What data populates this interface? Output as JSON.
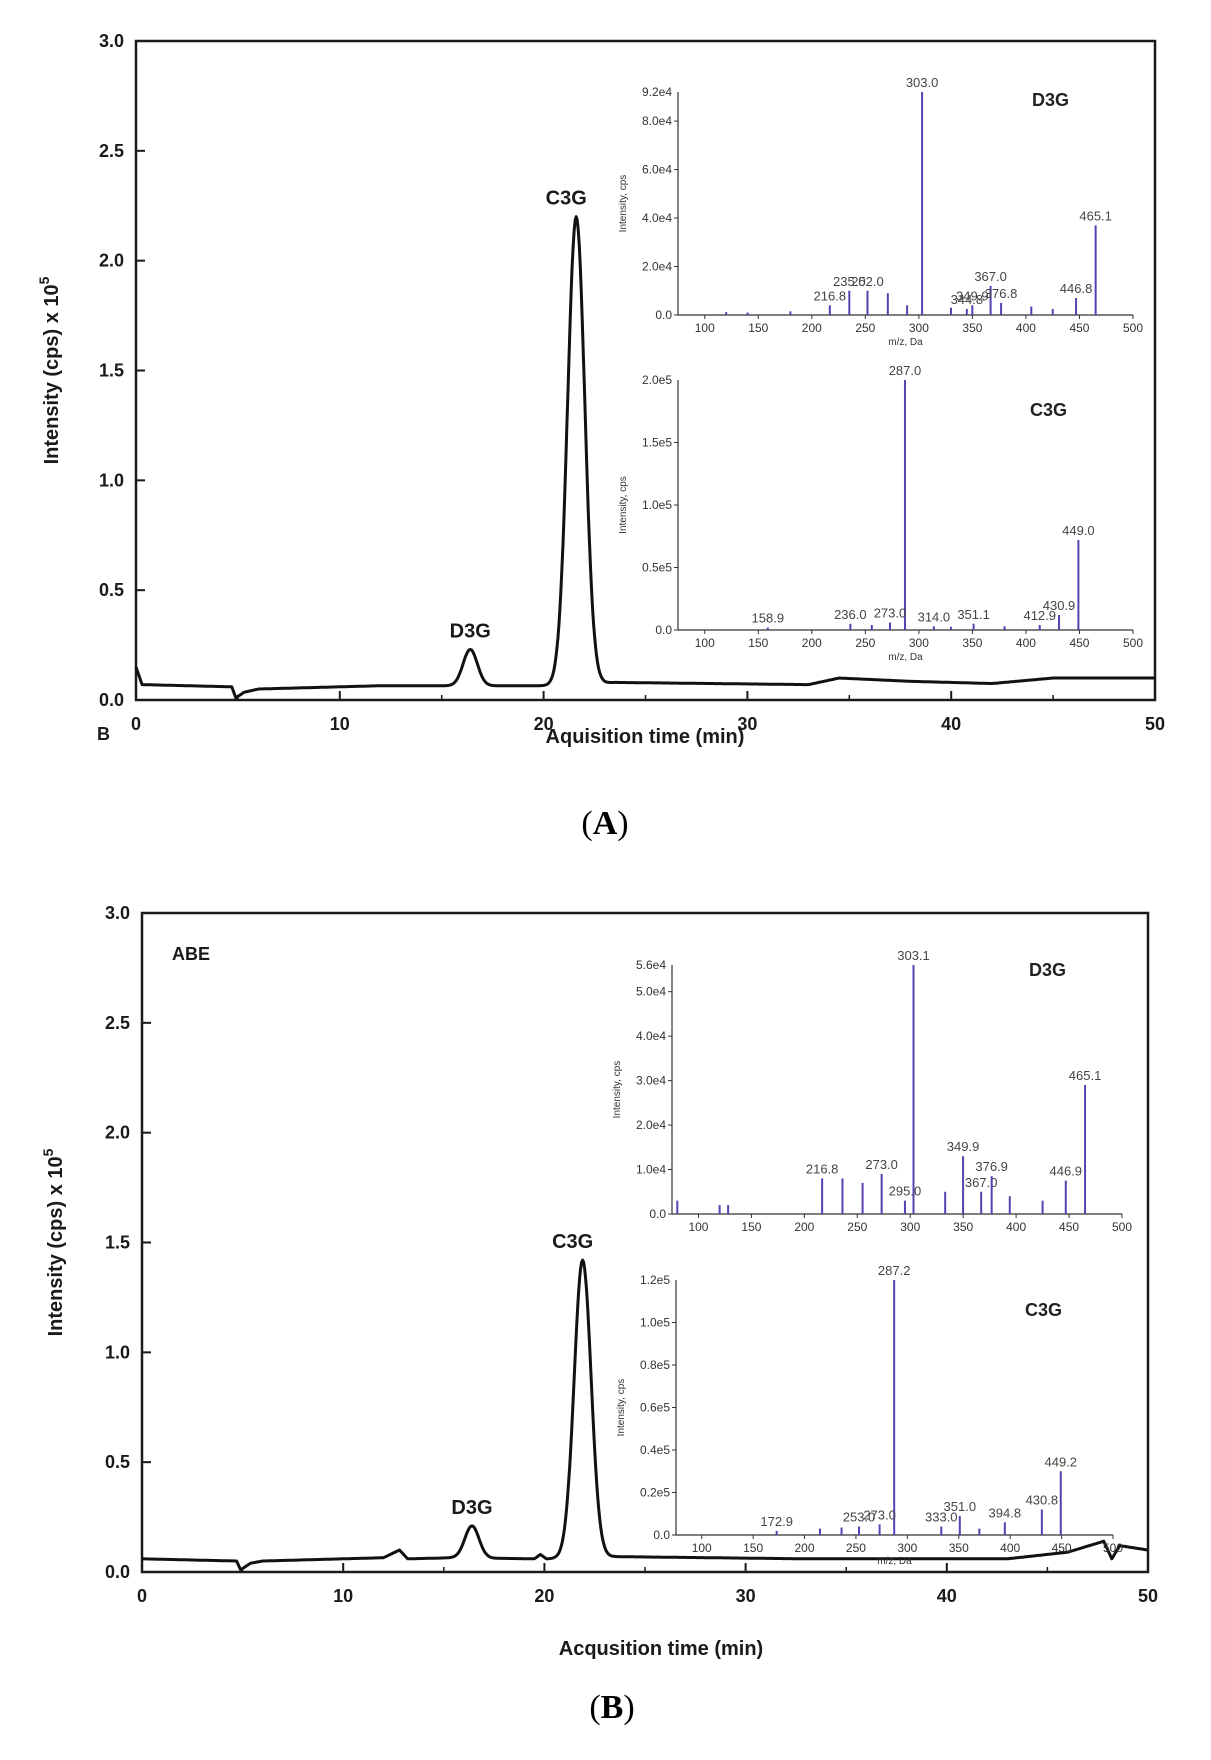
{
  "chart_data": [
    {
      "type": "line",
      "panel": "A",
      "caption": "A",
      "corner_label": "B",
      "inner_label": "",
      "xlabel": "Aquisition time (min)",
      "ylabel": "Intensity (cps) x 10",
      "ylabel_sup": "5",
      "xlim": [
        0,
        50
      ],
      "ylim": [
        0,
        3.0
      ],
      "xticks": [
        "0",
        "10",
        "20",
        "30",
        "40",
        "50"
      ],
      "yticks": [
        "0.0",
        "0.5",
        "1.0",
        "1.5",
        "2.0",
        "2.5",
        "3.0"
      ],
      "peaks": [
        {
          "name": "D3G",
          "x": 16.4,
          "y": 0.23
        },
        {
          "name": "C3G",
          "x": 21.6,
          "y": 2.2
        }
      ],
      "baseline": [
        [
          0,
          0.15
        ],
        [
          0.3,
          0.07
        ],
        [
          4.7,
          0.06
        ],
        [
          4.9,
          0.01
        ],
        [
          5.3,
          0.035
        ],
        [
          6,
          0.05
        ],
        [
          12,
          0.065
        ],
        [
          15.5,
          0.065
        ],
        [
          20.5,
          0.065
        ],
        [
          23.5,
          0.08
        ],
        [
          33,
          0.07
        ],
        [
          34.5,
          0.1
        ],
        [
          38,
          0.085
        ],
        [
          42,
          0.075
        ],
        [
          45,
          0.1
        ],
        [
          50,
          0.1
        ]
      ],
      "insets": [
        {
          "title": "D3G",
          "ymax_label": "9.2e4",
          "ylabel": "Intensity, cps",
          "xlabel": "m/z, Da",
          "yticks": [
            "0.0",
            "2.0e4",
            "4.0e4",
            "6.0e4",
            "8.0e4"
          ],
          "ytick_values": [
            0,
            20000,
            40000,
            60000,
            80000
          ],
          "ymax": 92000,
          "xticks": [
            "100",
            "150",
            "200",
            "250",
            "300",
            "350",
            "400",
            "450",
            "500"
          ],
          "xlim": [
            75,
            500
          ],
          "peaks": [
            {
              "mz": 303.0,
              "i": 92000,
              "label": "303.0"
            },
            {
              "mz": 465.1,
              "i": 37000,
              "label": "465.1"
            },
            {
              "mz": 367.0,
              "i": 12000,
              "label": "367.0"
            },
            {
              "mz": 235.0,
              "i": 10000,
              "label": "235.0"
            },
            {
              "mz": 252.0,
              "i": 10000,
              "label": "252.0"
            },
            {
              "mz": 216.8,
              "i": 4000,
              "label": "216.8"
            },
            {
              "mz": 349.9,
              "i": 4000,
              "label": "349.9"
            },
            {
              "mz": 344.8,
              "i": 2500,
              "label": "344.8"
            },
            {
              "mz": 376.8,
              "i": 5000,
              "label": "376.8"
            },
            {
              "mz": 446.8,
              "i": 7000,
              "label": "446.8"
            },
            {
              "mz": 271,
              "i": 9000,
              "label": ""
            },
            {
              "mz": 289,
              "i": 4000,
              "label": ""
            },
            {
              "mz": 330,
              "i": 3000,
              "label": ""
            },
            {
              "mz": 405,
              "i": 3500,
              "label": ""
            },
            {
              "mz": 120,
              "i": 1200,
              "label": ""
            },
            {
              "mz": 140,
              "i": 1000,
              "label": ""
            },
            {
              "mz": 180,
              "i": 1500,
              "label": ""
            },
            {
              "mz": 425,
              "i": 2500,
              "label": ""
            }
          ]
        },
        {
          "title": "C3G",
          "ymax_label": "2.0e5",
          "ylabel": "Intensity, cps",
          "xlabel": "m/z, Da",
          "yticks": [
            "0.0",
            "0.5e5",
            "1.0e5",
            "1.5e5"
          ],
          "ytick_values": [
            0,
            50000,
            100000,
            150000
          ],
          "ymax": 200000,
          "xticks": [
            "100",
            "150",
            "200",
            "250",
            "300",
            "350",
            "400",
            "450",
            "500"
          ],
          "xlim": [
            75,
            500
          ],
          "peaks": [
            {
              "mz": 287.0,
              "i": 200000,
              "label": "287.0"
            },
            {
              "mz": 449.0,
              "i": 72000,
              "label": "449.0"
            },
            {
              "mz": 430.9,
              "i": 12000,
              "label": "430.9"
            },
            {
              "mz": 158.9,
              "i": 2000,
              "label": "158.9"
            },
            {
              "mz": 236.0,
              "i": 5000,
              "label": "236.0"
            },
            {
              "mz": 273.0,
              "i": 6000,
              "label": "273.0"
            },
            {
              "mz": 314.0,
              "i": 3000,
              "label": "314.0"
            },
            {
              "mz": 351.1,
              "i": 5000,
              "label": "351.1"
            },
            {
              "mz": 412.9,
              "i": 4000,
              "label": "412.9"
            },
            {
              "mz": 256,
              "i": 4000,
              "label": ""
            },
            {
              "mz": 330,
              "i": 2500,
              "label": ""
            },
            {
              "mz": 380,
              "i": 3000,
              "label": ""
            }
          ]
        }
      ]
    },
    {
      "type": "line",
      "panel": "B",
      "caption": "B",
      "corner_label": "",
      "inner_label": "ABE",
      "xlabel": "Acqusition time (min)",
      "ylabel": "Intensity (cps) x 10",
      "ylabel_sup": "5",
      "xlim": [
        0,
        50
      ],
      "ylim": [
        0,
        3.0
      ],
      "xticks": [
        "0",
        "10",
        "20",
        "30",
        "40",
        "50"
      ],
      "yticks": [
        "0.0",
        "0.5",
        "1.0",
        "1.5",
        "2.0",
        "2.5",
        "3.0"
      ],
      "peaks": [
        {
          "name": "D3G",
          "x": 16.4,
          "y": 0.21
        },
        {
          "name": "C3G",
          "x": 21.9,
          "y": 1.42
        }
      ],
      "baseline": [
        [
          0,
          0.06
        ],
        [
          4.7,
          0.05
        ],
        [
          4.9,
          0.01
        ],
        [
          5.4,
          0.04
        ],
        [
          6,
          0.05
        ],
        [
          12,
          0.065
        ],
        [
          12.8,
          0.1
        ],
        [
          13.2,
          0.06
        ],
        [
          15.5,
          0.065
        ],
        [
          19.5,
          0.06
        ],
        [
          19.8,
          0.08
        ],
        [
          20.1,
          0.06
        ],
        [
          23.5,
          0.07
        ],
        [
          33,
          0.06
        ],
        [
          43,
          0.06
        ],
        [
          46,
          0.09
        ],
        [
          47.8,
          0.14
        ],
        [
          48.2,
          0.06
        ],
        [
          48.6,
          0.12
        ],
        [
          50,
          0.1
        ]
      ],
      "insets": [
        {
          "title": "D3G",
          "ymax_label": "5.6e4",
          "ylabel": "Intensity, cps",
          "xlabel": "",
          "yticks": [
            "0.0",
            "1.0e4",
            "2.0e4",
            "3.0e4",
            "4.0e4",
            "5.0e4"
          ],
          "ytick_values": [
            0,
            10000,
            20000,
            30000,
            40000,
            50000
          ],
          "ymax": 56000,
          "xticks": [
            "100",
            "150",
            "200",
            "250",
            "300",
            "350",
            "400",
            "450",
            "500"
          ],
          "xlim": [
            75,
            500
          ],
          "peaks": [
            {
              "mz": 303.1,
              "i": 56000,
              "label": "303.1"
            },
            {
              "mz": 465.1,
              "i": 29000,
              "label": "465.1"
            },
            {
              "mz": 349.9,
              "i": 13000,
              "label": "349.9"
            },
            {
              "mz": 216.8,
              "i": 8000,
              "label": "216.8"
            },
            {
              "mz": 273.0,
              "i": 9000,
              "label": "273.0"
            },
            {
              "mz": 295.0,
              "i": 3000,
              "label": "295.0"
            },
            {
              "mz": 367.0,
              "i": 5000,
              "label": "367.0"
            },
            {
              "mz": 376.9,
              "i": 8500,
              "label": "376.9"
            },
            {
              "mz": 446.9,
              "i": 7500,
              "label": "446.9"
            },
            {
              "mz": 236,
              "i": 8000,
              "label": ""
            },
            {
              "mz": 255,
              "i": 7000,
              "label": ""
            },
            {
              "mz": 333,
              "i": 5000,
              "label": ""
            },
            {
              "mz": 394,
              "i": 4000,
              "label": ""
            },
            {
              "mz": 80,
              "i": 3000,
              "label": ""
            },
            {
              "mz": 120,
              "i": 2000,
              "label": ""
            },
            {
              "mz": 128,
              "i": 2000,
              "label": ""
            },
            {
              "mz": 425,
              "i": 3000,
              "label": ""
            }
          ]
        },
        {
          "title": "C3G",
          "ymax_label": "1.2e5",
          "ylabel": "Intensity, cps",
          "xlabel": "m/z, Da",
          "yticks": [
            "0.0",
            "0.2e5",
            "0.4e5",
            "0.6e5",
            "0.8e5",
            "1.0e5"
          ],
          "ytick_values": [
            0,
            20000,
            40000,
            60000,
            80000,
            100000
          ],
          "ymax": 120000,
          "xticks": [
            "100",
            "150",
            "200",
            "250",
            "300",
            "350",
            "400",
            "450",
            "500"
          ],
          "xlim": [
            75,
            500
          ],
          "peaks": [
            {
              "mz": 287.2,
              "i": 120000,
              "label": "287.2"
            },
            {
              "mz": 449.2,
              "i": 30000,
              "label": "449.2"
            },
            {
              "mz": 430.8,
              "i": 12000,
              "label": "430.8"
            },
            {
              "mz": 172.9,
              "i": 2000,
              "label": "172.9"
            },
            {
              "mz": 253.0,
              "i": 4000,
              "label": "253.0"
            },
            {
              "mz": 273.0,
              "i": 5000,
              "label": "273.0"
            },
            {
              "mz": 333.0,
              "i": 4000,
              "label": "333.0"
            },
            {
              "mz": 351.0,
              "i": 9000,
              "label": "351.0"
            },
            {
              "mz": 394.8,
              "i": 6000,
              "label": "394.8"
            },
            {
              "mz": 215,
              "i": 3000,
              "label": ""
            },
            {
              "mz": 236,
              "i": 3500,
              "label": ""
            },
            {
              "mz": 370,
              "i": 3000,
              "label": ""
            }
          ]
        }
      ]
    }
  ]
}
